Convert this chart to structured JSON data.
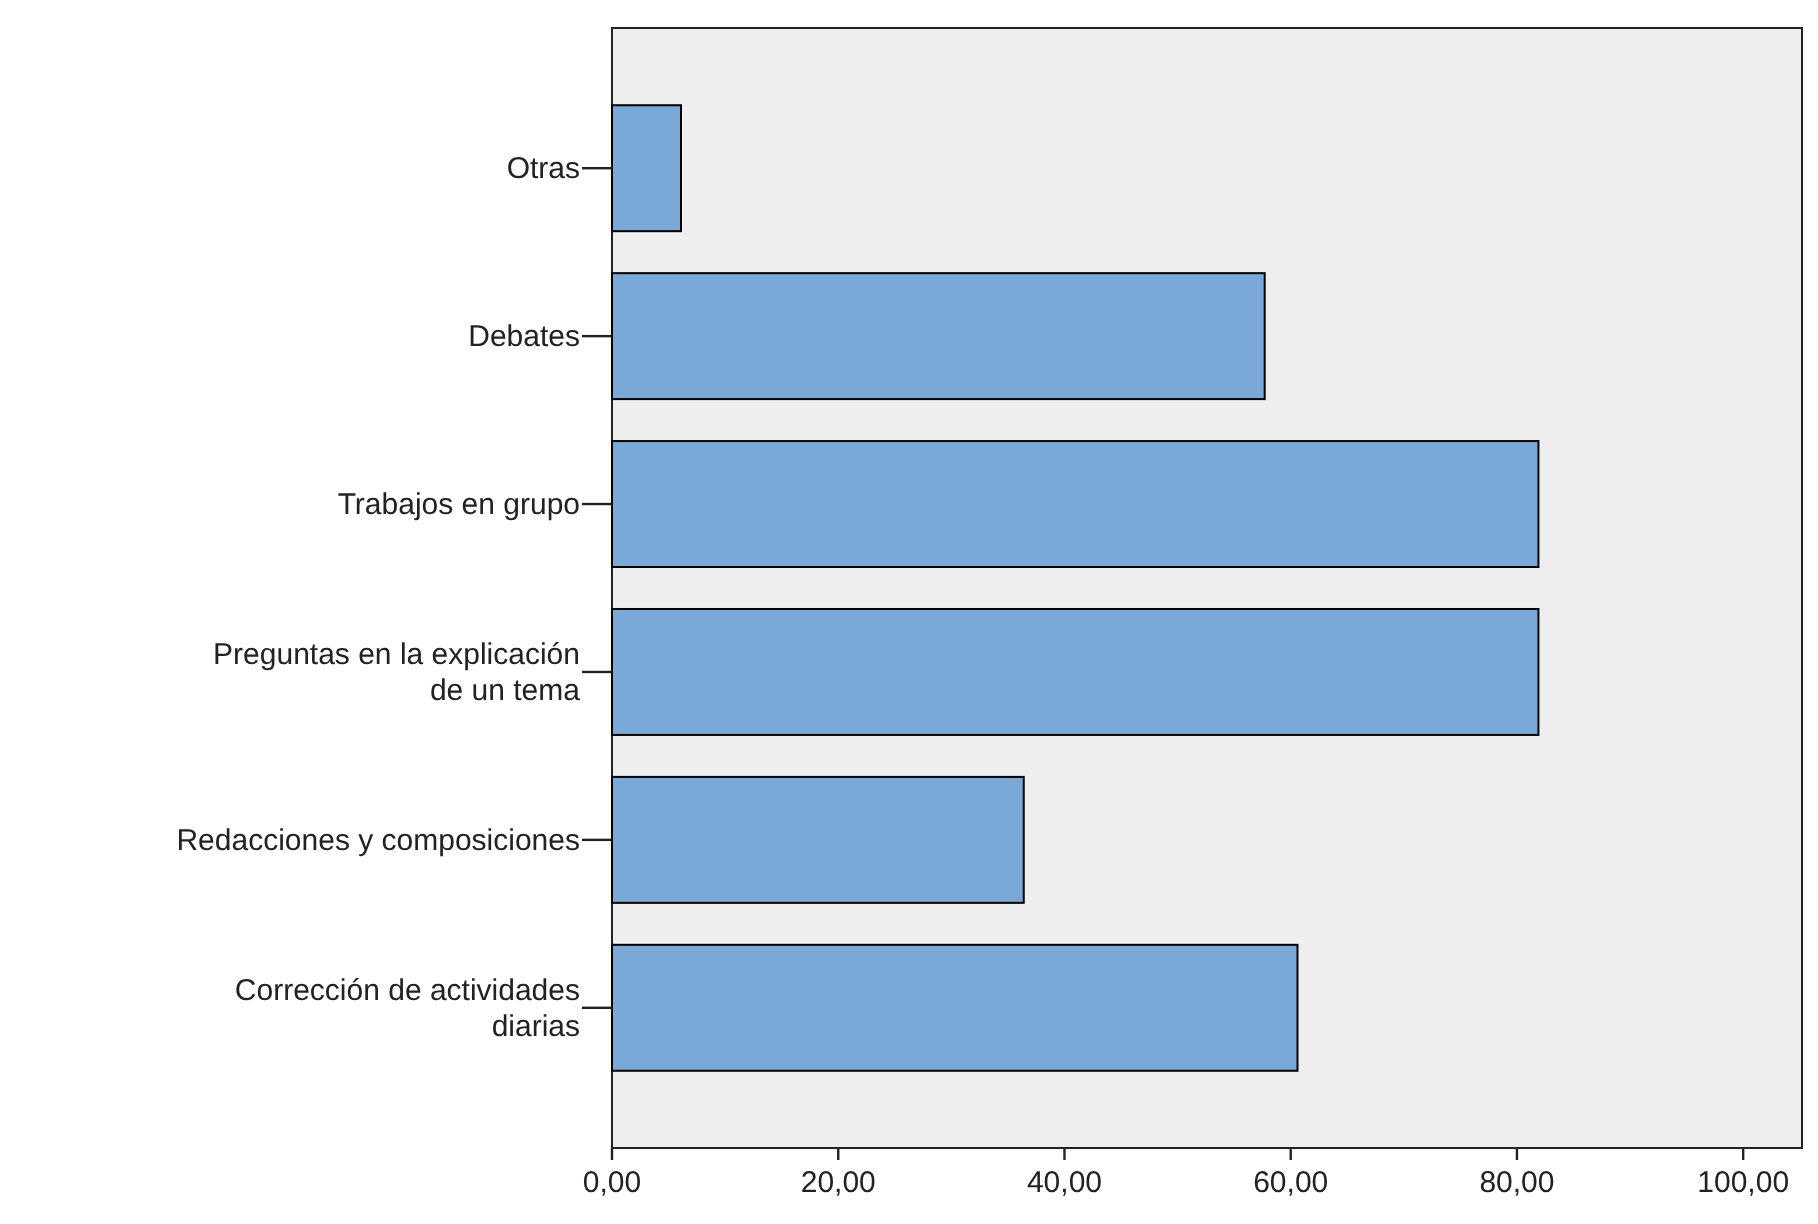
{
  "chart_data": {
    "type": "bar",
    "orientation": "horizontal",
    "categories": [
      "Otras",
      "Debates",
      "Trabajos en grupo",
      "Preguntas en la explicación de un tema",
      "Redacciones y composiciones",
      "Corrección de actividades diarias"
    ],
    "values": [
      6.1,
      57.7,
      81.9,
      81.9,
      36.4,
      60.6
    ],
    "color": "#7ba9d7",
    "xlim": [
      0,
      105.2
    ],
    "xticks": [
      {
        "value": 0,
        "label": "0,00"
      },
      {
        "value": 20,
        "label": "20,00"
      },
      {
        "value": 40,
        "label": "40,00"
      },
      {
        "value": 60,
        "label": "60,00"
      },
      {
        "value": 80,
        "label": "80,00"
      },
      {
        "value": 100,
        "label": "100,00"
      }
    ]
  }
}
